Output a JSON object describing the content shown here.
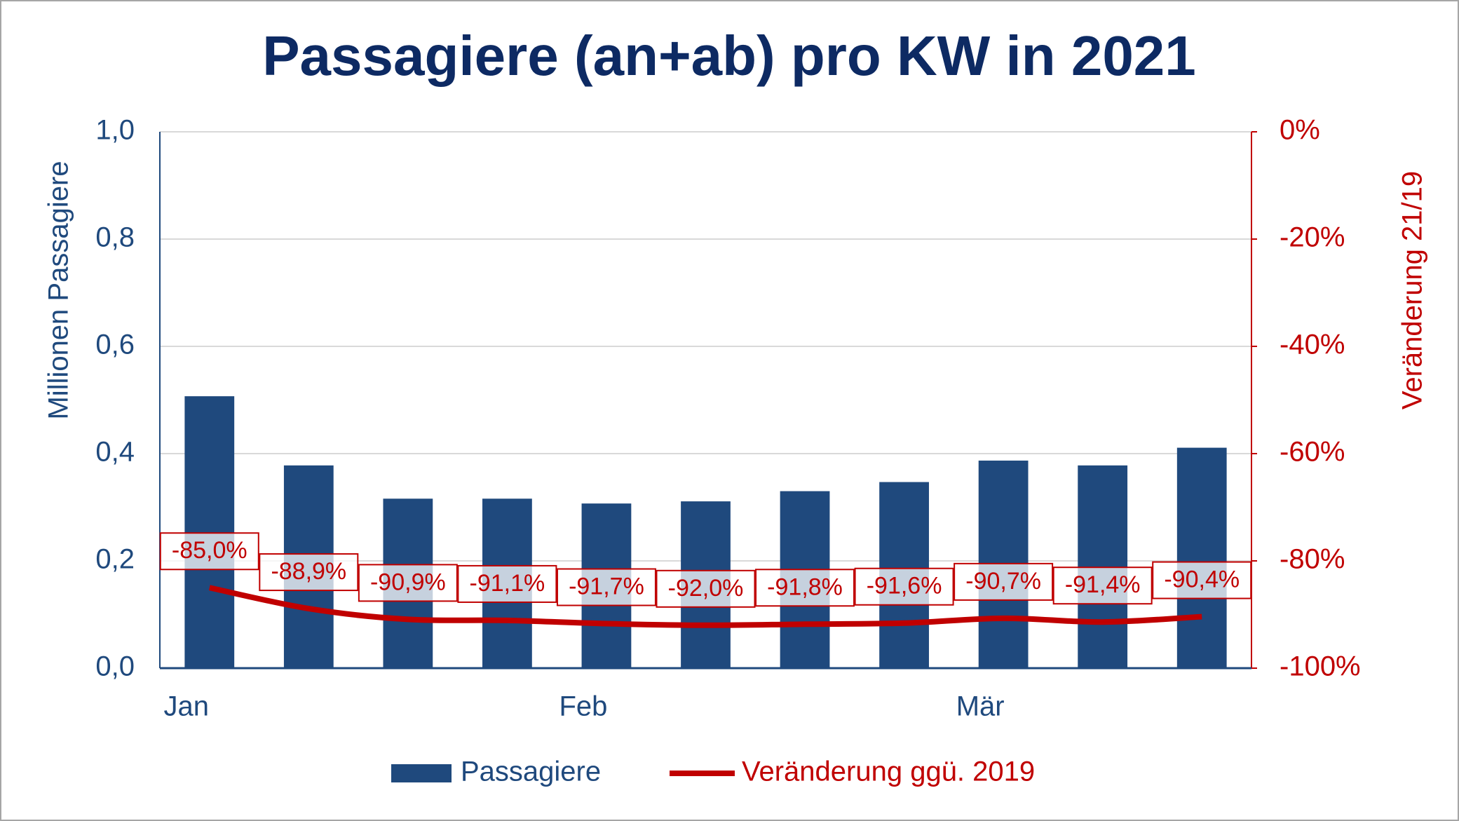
{
  "chart_data": {
    "type": "bar",
    "title": "Passagiere (an+ab) pro KW in 2021",
    "y_label": "Millionen Passagiere",
    "y2_label": "Veränderung 21/19",
    "categories": [
      "Jan",
      null,
      null,
      null,
      "Feb",
      null,
      null,
      null,
      "Mär",
      null,
      null
    ],
    "series": [
      {
        "name": "Passagiere",
        "type": "bar",
        "color": "#1f497d",
        "values": [
          0.507,
          0.378,
          0.316,
          0.316,
          0.307,
          0.311,
          0.33,
          0.347,
          0.387,
          0.378,
          0.411
        ]
      },
      {
        "name": "Veränderung ggü. 2019",
        "type": "line",
        "axis": "y2",
        "color": "#c00000",
        "values": [
          -85.0,
          -88.9,
          -90.9,
          -91.1,
          -91.7,
          -92.0,
          -91.8,
          -91.6,
          -90.7,
          -91.4,
          -90.4
        ],
        "value_labels": [
          "-85,0%",
          "-88,9%",
          "-90,9%",
          "-91,1%",
          "-91,7%",
          "-92,0%",
          "-91,8%",
          "-91,6%",
          "-90,7%",
          "-91,4%",
          "-90,4%"
        ]
      }
    ],
    "ylim": [
      0,
      1
    ],
    "yticks": [
      {
        "value": 0,
        "label": "0,0"
      },
      {
        "value": 0.2,
        "label": "0,2"
      },
      {
        "value": 0.4,
        "label": "0,4"
      },
      {
        "value": 0.6,
        "label": "0,6"
      },
      {
        "value": 0.8,
        "label": "0,8"
      },
      {
        "value": 1,
        "label": "1,0"
      }
    ],
    "y2lim": [
      -100,
      0
    ],
    "y2ticks": [
      {
        "value": -100,
        "label": "-100%"
      },
      {
        "value": -80,
        "label": "-80%"
      },
      {
        "value": -60,
        "label": "-60%"
      },
      {
        "value": -40,
        "label": "-40%"
      },
      {
        "value": -20,
        "label": "-20%"
      },
      {
        "value": 0,
        "label": "0%"
      }
    ],
    "grid": true,
    "legend": "bottom"
  }
}
